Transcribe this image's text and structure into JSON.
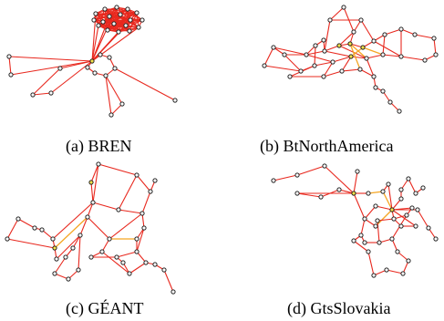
{
  "figure": {
    "panels": [
      {
        "id": "a",
        "caption": "(a) BREN"
      },
      {
        "id": "b",
        "caption": "(b) BtNorthAmerica"
      },
      {
        "id": "c",
        "caption": "(c) GÉANT"
      },
      {
        "id": "d",
        "caption": "(d) GtsSlovakia"
      }
    ]
  }
}
